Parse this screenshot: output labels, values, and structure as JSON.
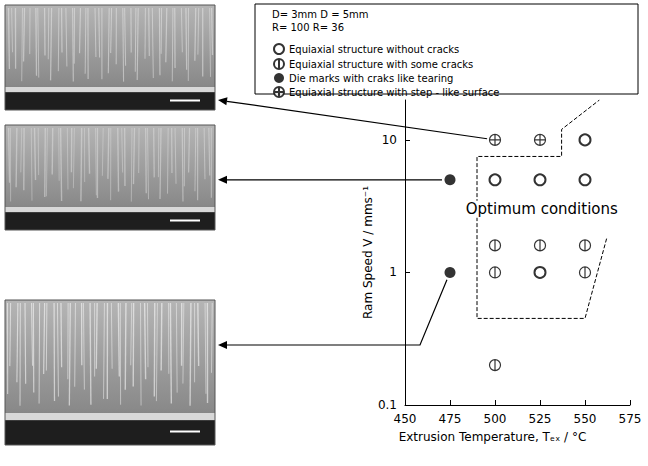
{
  "chart_data": {
    "type": "scatter",
    "x_label": "Extrusion Temperature, Tₑₓ / °C",
    "y_label": "Ram Speed V / mms⁻¹",
    "legend_title": [
      "D= 3mm D = 5mm",
      "R= 100 R= 36"
    ],
    "annotation": "Optimum conditions",
    "log": "y",
    "grid": false,
    "legend": "top",
    "xlim": [
      450,
      575
    ],
    "xticks": [
      450,
      475,
      500,
      525,
      550,
      575
    ],
    "ylim": [
      0.1,
      20
    ],
    "yticks": [
      0.1,
      1,
      10
    ],
    "series": [
      {
        "name": "Equiaxial structure without cracks",
        "marker": "circle_open",
        "color": "#000000",
        "x": [
          550,
          500,
          525,
          550,
          525
        ],
        "values": [
          10,
          5,
          5,
          5,
          1
        ]
      },
      {
        "name": "Equiaxial structure with some cracks",
        "marker": "circle_vline",
        "color": "#000000",
        "x": [
          500,
          525,
          550,
          500,
          550,
          500
        ],
        "values": [
          1.6,
          1.6,
          1.6,
          1,
          1,
          0.2
        ]
      },
      {
        "name": "Die marks with craks like tearing",
        "marker": "circle_filled",
        "color": "#000000",
        "x": [
          475,
          475
        ],
        "values": [
          5,
          1
        ]
      },
      {
        "name": "Equiaxial structure with step - like surface",
        "marker": "circle_cross",
        "color": "#000000",
        "x": [
          500,
          525
        ],
        "values": [
          10,
          10
        ]
      }
    ],
    "optimum_region": {
      "x": [
        562,
        550,
        490,
        490,
        537,
        537,
        558
      ],
      "y": [
        1.8,
        0.45,
        0.45,
        7.5,
        7.5,
        12,
        20
      ]
    }
  }
}
